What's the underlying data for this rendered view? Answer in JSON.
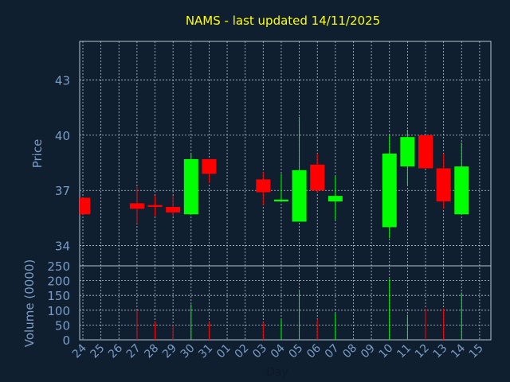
{
  "chart_data": {
    "type": "candlestick",
    "title": "NAMS - last updated 14/11/2025",
    "xlabel": "Day",
    "ylabel": "Price",
    "volume_label": "Volume (0000)",
    "x_ticks": [
      "24",
      "25",
      "26",
      "27",
      "28",
      "29",
      "30",
      "31",
      "01",
      "02",
      "03",
      "04",
      "05",
      "06",
      "07",
      "08",
      "09",
      "10",
      "11",
      "12",
      "13",
      "14",
      "15"
    ],
    "price_ticks": [
      34,
      37,
      40,
      43
    ],
    "volume_ticks": [
      0,
      50,
      100,
      150,
      200,
      250
    ],
    "price_range": [
      32.9,
      45.1
    ],
    "volume_range": [
      0,
      250
    ],
    "grid": true,
    "colors": {
      "background": "#0f1f30",
      "title": "#ffff00",
      "axis_text": "#7a9cc6",
      "up": "#00ff00",
      "down": "#ff0000",
      "grid": "#b8c4d0"
    },
    "candles": [
      {
        "day": "24",
        "open": 36.6,
        "close": 35.7,
        "high": 36.6,
        "low": 35.7,
        "volume": 0
      },
      {
        "day": "27",
        "open": 36.3,
        "close": 36.0,
        "high": 37.2,
        "low": 35.2,
        "volume": 100
      },
      {
        "day": "28",
        "open": 36.2,
        "close": 36.1,
        "high": 36.7,
        "low": 35.6,
        "volume": 60
      },
      {
        "day": "29",
        "open": 36.1,
        "close": 35.8,
        "high": 36.7,
        "low": 35.6,
        "volume": 50
      },
      {
        "day": "30",
        "open": 35.7,
        "close": 38.7,
        "high": 39.0,
        "low": 35.7,
        "volume": 120
      },
      {
        "day": "31",
        "open": 38.7,
        "close": 37.9,
        "high": 38.7,
        "low": 37.4,
        "volume": 60
      },
      {
        "day": "03",
        "open": 37.6,
        "close": 36.9,
        "high": 38.0,
        "low": 36.2,
        "volume": 60
      },
      {
        "day": "04",
        "open": 36.4,
        "close": 36.5,
        "high": 37.9,
        "low": 36.4,
        "volume": 70
      },
      {
        "day": "05",
        "open": 35.3,
        "close": 38.1,
        "high": 41.0,
        "low": 35.3,
        "volume": 170
      },
      {
        "day": "06",
        "open": 38.4,
        "close": 37.0,
        "high": 39.0,
        "low": 36.9,
        "volume": 70
      },
      {
        "day": "07",
        "open": 36.4,
        "close": 36.7,
        "high": 37.8,
        "low": 35.4,
        "volume": 90
      },
      {
        "day": "10",
        "open": 35.0,
        "close": 39.0,
        "high": 40.0,
        "low": 34.4,
        "volume": 205
      },
      {
        "day": "11",
        "open": 38.3,
        "close": 39.9,
        "high": 40.3,
        "low": 37.3,
        "volume": 85
      },
      {
        "day": "12",
        "open": 40.0,
        "close": 38.2,
        "high": 40.0,
        "low": 38.2,
        "volume": 105
      },
      {
        "day": "13",
        "open": 38.2,
        "close": 36.4,
        "high": 39.0,
        "low": 36.0,
        "volume": 105
      },
      {
        "day": "14",
        "open": 35.7,
        "close": 38.3,
        "high": 39.6,
        "low": 35.7,
        "volume": 160
      }
    ]
  }
}
